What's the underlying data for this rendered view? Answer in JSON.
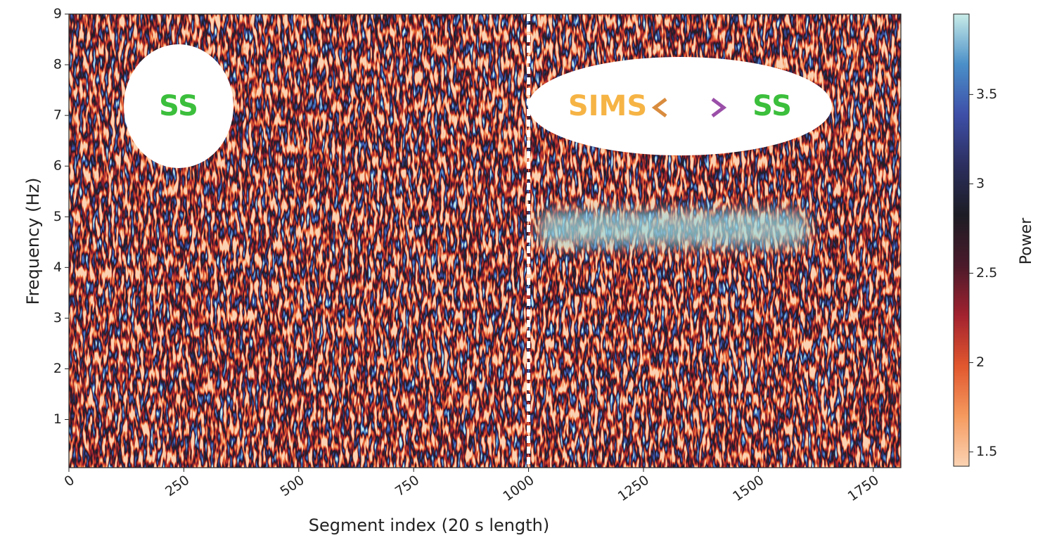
{
  "chart_data": {
    "type": "spectrogram",
    "xlabel": "Segment index (20 s length)",
    "ylabel": "Frequency (Hz)",
    "xlim": [
      0,
      1810
    ],
    "xticks": [
      0,
      250,
      500,
      750,
      1000,
      1250,
      1500,
      1750
    ],
    "ylim": [
      0.05,
      9
    ],
    "yticks": [
      1,
      2,
      3,
      4,
      5,
      6,
      7,
      8,
      9
    ],
    "colorbar": {
      "label": "Power",
      "lim": [
        1.42,
        3.95
      ],
      "ticks": [
        1.5,
        2.0,
        2.5,
        3.0,
        3.5
      ],
      "colormap": [
        "#fbd3b3",
        "#f59a5f",
        "#e1572e",
        "#a2222f",
        "#4a1a2a",
        "#1c1c24",
        "#2c2f5f",
        "#3e4fa8",
        "#4a8fc8",
        "#c9ece8"
      ]
    },
    "divider_x": 1000,
    "annotations": {
      "left_state": "SS",
      "from_state": "SIMS",
      "to_state": "SS"
    }
  }
}
